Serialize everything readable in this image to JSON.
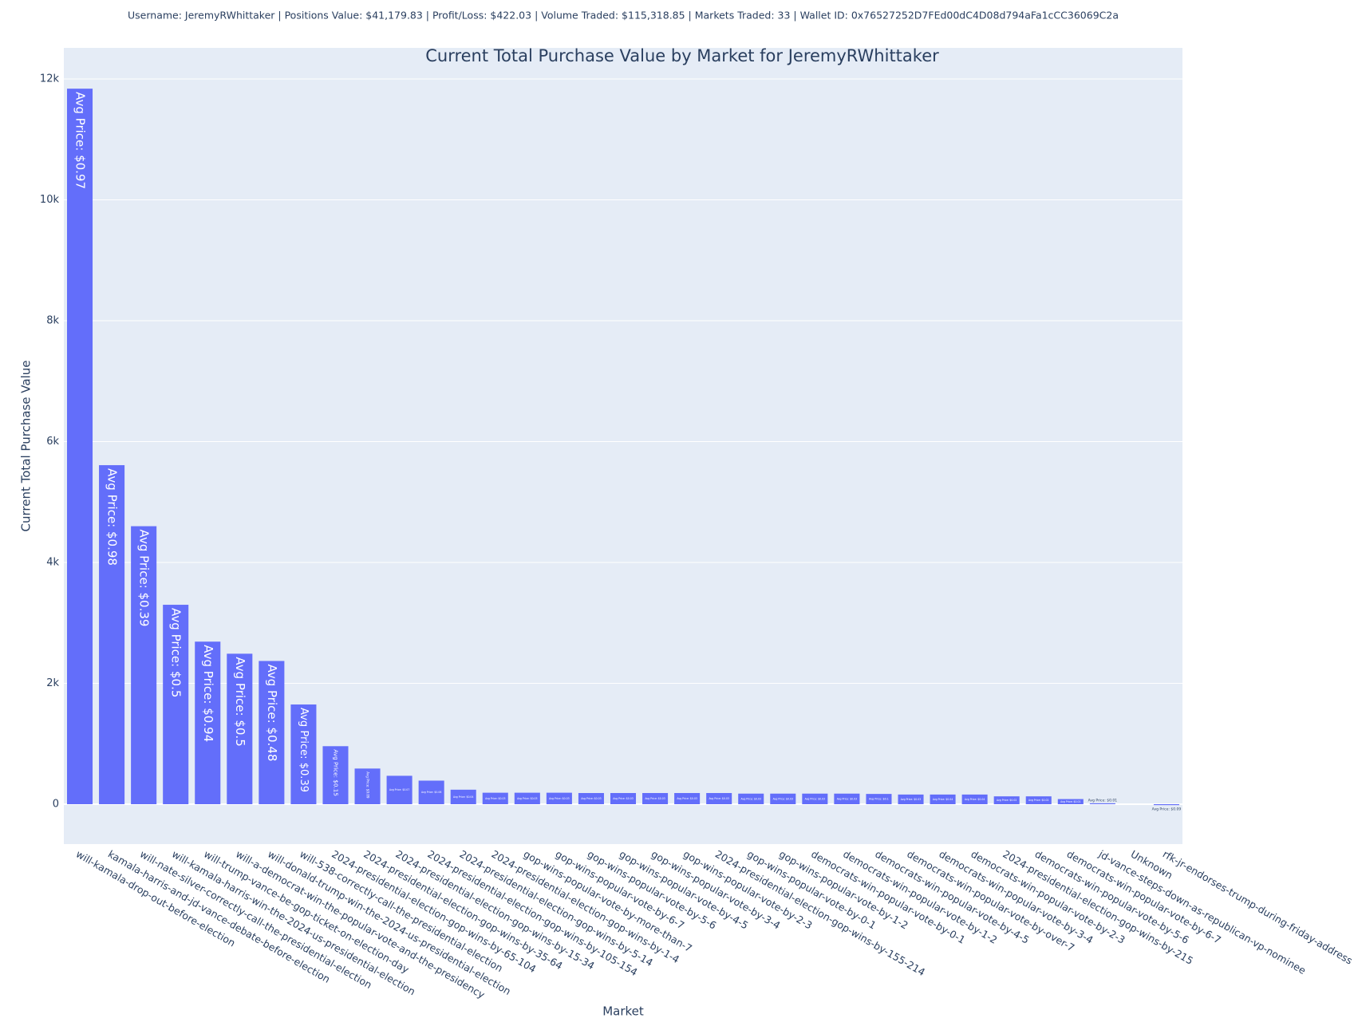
{
  "chart_data": {
    "type": "bar",
    "subtitle": "Username: JeremyRWhittaker | Positions Value: $41,179.83 | Profit/Loss: $422.03 | Volume Traded: $115,318.85 | Markets Traded: 33 | Wallet ID: 0x76527252D7FEd00dC4D08d794aFa1cCC36069C2a",
    "title": "Current Total Purchase Value by Market for JeremyRWhittaker",
    "x_label": "Market",
    "y_label": "Current Total Purchase Value",
    "categories": [
      "will-kamala-drop-out-before-election",
      "kamala-harris-and-jd-vance-debate-before-election",
      "will-nate-silver-correctly-call-the-presidential-election",
      "will-kamala-harris-win-the-2024-us-presidential-election",
      "will-trump-vance-be-gop-ticket-on-election-day",
      "will-a-democrat-win-the-popular-vote-and-the-presidency",
      "will-donald-trump-win-the-2024-us-presidential-election",
      "will-538-correctly-call-the-presidential-election",
      "2024-presidential-election-gop-wins-by-65-104",
      "2024-presidential-election-gop-wins-by-35-64",
      "2024-presidential-election-gop-wins-by-15-34",
      "2024-presidential-election-gop-wins-by-105-154",
      "2024-presidential-election-gop-wins-by-5-14",
      "2024-presidential-election-gop-wins-by-1-4",
      "gop-wins-popular-vote-by-more-than-7",
      "gop-wins-popular-vote-by-6-7",
      "gop-wins-popular-vote-by-5-6",
      "gop-wins-popular-vote-by-4-5",
      "gop-wins-popular-vote-by-3-4",
      "gop-wins-popular-vote-by-2-3",
      "2024-presidential-election-gop-wins-by-155-214",
      "gop-wins-popular-vote-by-0-1",
      "gop-wins-popular-vote-by-1-2",
      "democrats-win-popular-vote-by-0-1",
      "democrats-win-popular-vote-by-1-2",
      "democrats-win-popular-vote-by-4-5",
      "democrats-win-popular-vote-by-over-7",
      "democrats-win-popular-vote-by-3-4",
      "democrats-win-popular-vote-by-2-3",
      "2024-presidential-election-gop-wins-by-215",
      "democrats-win-popular-vote-by-5-6",
      "democrats-win-popular-vote-by-6-7",
      "jd-vance-steps-down-as-republican-vp-nominee",
      "Unknown",
      "rfk-jr-endorses-trump-during-friday-address"
    ],
    "values": [
      11840,
      5610,
      4600,
      3300,
      2690,
      2490,
      2370,
      1650,
      960,
      590,
      470,
      390,
      240,
      190,
      190,
      190,
      185,
      185,
      185,
      185,
      185,
      175,
      175,
      175,
      175,
      170,
      160,
      160,
      160,
      130,
      130,
      85,
      15,
      0,
      -15
    ],
    "bar_texts": [
      "Avg Price: $0.97",
      "Avg Price: $0.98",
      "Avg Price: $0.39",
      "Avg Price: $0.5",
      "Avg Price: $0.94",
      "Avg Price: $0.5",
      "Avg Price: $0.48",
      "Avg Price: $0.39",
      "Avg Price: $0.15",
      "Avg Price: $0.09",
      "Avg Price: $0.07",
      "Avg Price: $0.06",
      "Avg Price: $0.04",
      "Avg Price: $0.03",
      "Avg Price: $0.03",
      "Avg Price: $0.03",
      "Avg Price: $0.03",
      "Avg Price: $0.03",
      "Avg Price: $0.03",
      "Avg Price: $0.03",
      "Avg Price: $0.03",
      "Avg Price: $0.03",
      "Avg Price: $0.03",
      "Avg Price: $0.03",
      "Avg Price: $0.03",
      "Avg Price: $0.1",
      "Avg Price: $0.03",
      "Avg Price: $0.04",
      "Avg Price: $0.04",
      "Avg Price: $0.02",
      "Avg Price: $0.02",
      "Avg Price: $0.01",
      "Avg Price: $0.01",
      null,
      "Avg Price: $0.09"
    ],
    "color": "#636efa",
    "ylim": [
      -660,
      12515
    ],
    "yticks": [
      0,
      {
        "value": 2000,
        "label": "2k"
      },
      {
        "value": 4000,
        "label": "4k"
      },
      {
        "value": 6000,
        "label": "6k"
      },
      {
        "value": 8000,
        "label": "8k"
      },
      {
        "value": 10000,
        "label": "10k"
      },
      {
        "value": 12000,
        "label": "12k"
      }
    ],
    "grid": true
  }
}
